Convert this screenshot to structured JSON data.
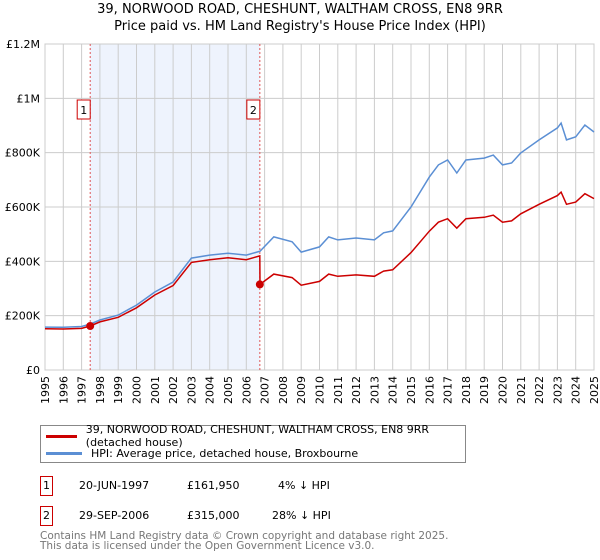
{
  "title_line1": "39, NORWOOD ROAD, CHESHUNT, WALTHAM CROSS, EN8 9RR",
  "title_line2": "Price paid vs. HM Land Registry's House Price Index (HPI)",
  "chart_data": {
    "type": "line",
    "title": "39, NORWOOD ROAD, CHESHUNT, WALTHAM CROSS, EN8 9RR — Price paid vs. HM Land Registry's House Price Index (HPI)",
    "xlim": [
      1995,
      2025
    ],
    "ylim": [
      0,
      1200000
    ],
    "grid": true,
    "x_ticks": [
      "1995",
      "1996",
      "1997",
      "1998",
      "1999",
      "2000",
      "2001",
      "2002",
      "2003",
      "2004",
      "2005",
      "2006",
      "2007",
      "2008",
      "2009",
      "2010",
      "2011",
      "2012",
      "2013",
      "2014",
      "2015",
      "2016",
      "2017",
      "2018",
      "2019",
      "2020",
      "2021",
      "2022",
      "2023",
      "2024",
      "2025"
    ],
    "y_ticks": [
      {
        "v": 0,
        "label": "£0"
      },
      {
        "v": 200000,
        "label": "£200K"
      },
      {
        "v": 400000,
        "label": "£400K"
      },
      {
        "v": 600000,
        "label": "£600K"
      },
      {
        "v": 800000,
        "label": "£800K"
      },
      {
        "v": 1000000,
        "label": "£1M"
      },
      {
        "v": 1200000,
        "label": "£1.2M"
      }
    ],
    "x": [
      1995,
      1996,
      1997,
      1997.47,
      1998,
      1999,
      2000,
      2001,
      2002,
      2003,
      2004,
      2005,
      2006,
      2006.74,
      2006.75,
      2007.5,
      2008.5,
      2009,
      2010,
      2010.5,
      2011,
      2012,
      2013,
      2013.5,
      2014,
      2015,
      2016,
      2016.5,
      2017,
      2017.5,
      2018,
      2019,
      2019.5,
      2020,
      2020.5,
      2021,
      2022,
      2023,
      2023.2,
      2023.5,
      2024,
      2024.5,
      2025
    ],
    "series": [
      {
        "name": "39, NORWOOD ROAD, CHESHUNT, WALTHAM CROSS, EN8 9RR (detached house)",
        "color": "#cc0000",
        "values": [
          152000,
          151000,
          153000,
          161950,
          177000,
          194000,
          229000,
          276000,
          311000,
          396000,
          406000,
          413000,
          406000,
          420000,
          315000,
          353000,
          340000,
          312000,
          326000,
          353000,
          345000,
          350000,
          345000,
          364000,
          369000,
          432000,
          511000,
          544000,
          557000,
          522000,
          557000,
          562000,
          570000,
          544000,
          549000,
          575000,
          610000,
          642000,
          655000,
          610000,
          618000,
          649000,
          631000
        ]
      },
      {
        "name": "HPI: Average price, detached house, Broxbourne",
        "color": "#5b8fd4",
        "values": [
          158000,
          157000,
          160000,
          169000,
          184000,
          202000,
          239000,
          287000,
          324000,
          412000,
          423000,
          430000,
          423000,
          437000,
          437000,
          490000,
          472000,
          434000,
          453000,
          490000,
          479000,
          486000,
          479000,
          505000,
          512000,
          600000,
          710000,
          755000,
          773000,
          725000,
          773000,
          780000,
          791000,
          755000,
          762000,
          799000,
          847000,
          891000,
          909000,
          847000,
          858000,
          902000,
          876000
        ]
      }
    ],
    "sales": [
      {
        "id": "1",
        "x": 1997.47,
        "price": 161950,
        "date": "20-JUN-1997",
        "price_label": "£161,950",
        "hpi_diff": "4% ↓ HPI"
      },
      {
        "id": "2",
        "x": 2006.74,
        "price": 315000,
        "date": "29-SEP-2006",
        "price_label": "£315,000",
        "hpi_diff": "28% ↓ HPI"
      }
    ],
    "shaded_range": [
      1997.47,
      2006.74
    ]
  },
  "legend": {
    "property": "39, NORWOOD ROAD, CHESHUNT, WALTHAM CROSS, EN8 9RR (detached house)",
    "hpi": "HPI: Average price, detached house, Broxbourne"
  },
  "footer": {
    "line1": "Contains HM Land Registry data © Crown copyright and database right 2025.",
    "line2": "This data is licensed under the Open Government Licence v3.0."
  }
}
